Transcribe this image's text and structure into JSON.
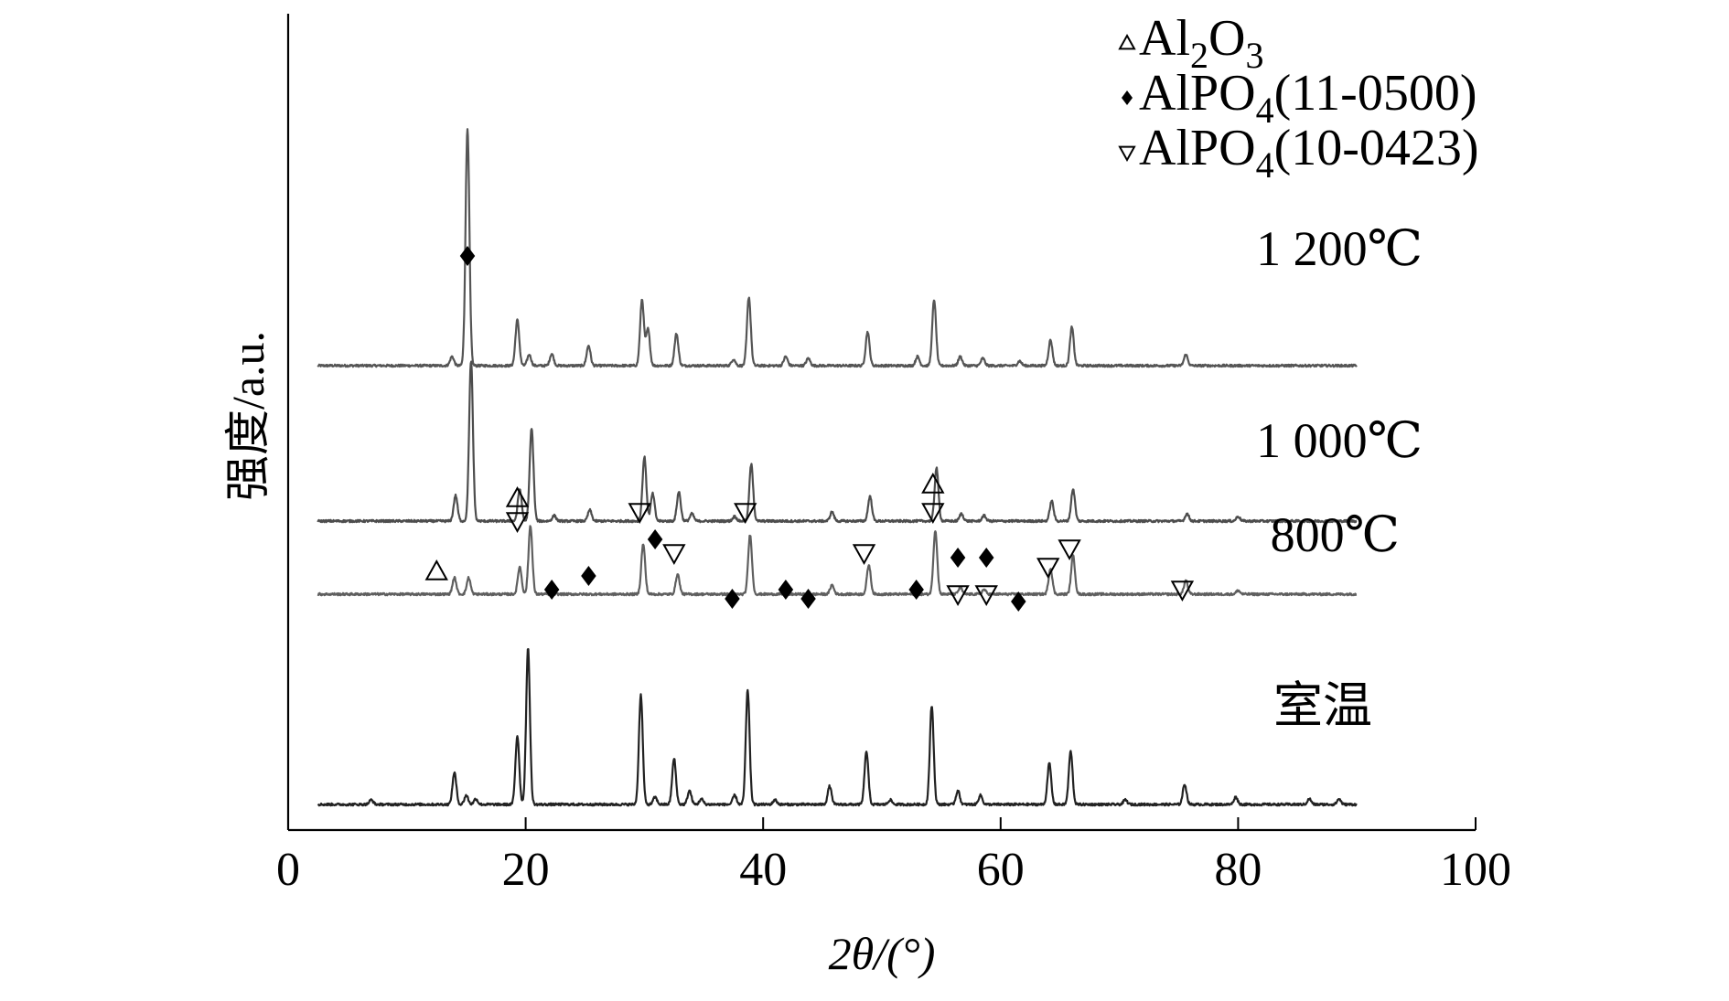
{
  "chart_data": {
    "type": "line",
    "title": "",
    "xlabel": "2θ/(°)",
    "ylabel": "强度/a.u.",
    "xlim": [
      0,
      100
    ],
    "x_ticks": [
      0,
      20,
      40,
      60,
      80,
      100
    ],
    "x_tick_labels": [
      "0",
      "20",
      "40",
      "60",
      "80",
      "100"
    ],
    "y_ticks_shown": false,
    "grid": false,
    "legend_position": "top-right",
    "legend": [
      {
        "marker": "triangle-up-open",
        "formula": "Al",
        "sub1": "2",
        "mid": "O",
        "sub2": "3",
        "suffix": ""
      },
      {
        "marker": "diamond-filled",
        "formula": "AlPO",
        "sub1": "4",
        "mid": "",
        "sub2": "",
        "suffix": "(11-0500)"
      },
      {
        "marker": "triangle-down-open",
        "formula": "AlPO",
        "sub1": "4",
        "mid": "",
        "sub2": "",
        "suffix": "(10-0423)"
      }
    ],
    "series": [
      {
        "name": "1 200℃",
        "color": "#555555",
        "baseline": 3.0,
        "peaks": [
          [
            13.8,
            0.1
          ],
          [
            15.1,
            2.6
          ],
          [
            19.3,
            0.5
          ],
          [
            20.3,
            0.12
          ],
          [
            22.2,
            0.13
          ],
          [
            25.3,
            0.22
          ],
          [
            29.8,
            0.72
          ],
          [
            30.3,
            0.4
          ],
          [
            32.7,
            0.35
          ],
          [
            37.5,
            0.07
          ],
          [
            38.8,
            0.75
          ],
          [
            41.9,
            0.1
          ],
          [
            43.8,
            0.08
          ],
          [
            48.8,
            0.37
          ],
          [
            53.0,
            0.1
          ],
          [
            54.4,
            0.72
          ],
          [
            56.6,
            0.1
          ],
          [
            58.5,
            0.08
          ],
          [
            61.6,
            0.05
          ],
          [
            64.2,
            0.28
          ],
          [
            66.0,
            0.42
          ],
          [
            75.6,
            0.12
          ]
        ]
      },
      {
        "name": "1 000℃",
        "color": "#4d4d4d",
        "baseline": 1.3,
        "peaks": [
          [
            14.1,
            0.28
          ],
          [
            15.4,
            1.75
          ],
          [
            19.5,
            0.35
          ],
          [
            20.5,
            1.02
          ],
          [
            22.4,
            0.06
          ],
          [
            25.4,
            0.12
          ],
          [
            30.0,
            0.7
          ],
          [
            30.7,
            0.3
          ],
          [
            32.9,
            0.32
          ],
          [
            34.0,
            0.08
          ],
          [
            37.6,
            0.05
          ],
          [
            39.0,
            0.62
          ],
          [
            45.8,
            0.1
          ],
          [
            49.0,
            0.27
          ],
          [
            54.6,
            0.58
          ],
          [
            56.7,
            0.08
          ],
          [
            58.6,
            0.06
          ],
          [
            64.3,
            0.22
          ],
          [
            66.1,
            0.35
          ],
          [
            75.7,
            0.08
          ],
          [
            80.0,
            0.05
          ]
        ]
      },
      {
        "name": "800℃",
        "color": "#5f5f5f",
        "baseline": 0.5,
        "peaks": [
          [
            14.0,
            0.18
          ],
          [
            15.2,
            0.18
          ],
          [
            19.5,
            0.3
          ],
          [
            20.4,
            0.75
          ],
          [
            29.9,
            0.55
          ],
          [
            32.8,
            0.22
          ],
          [
            38.9,
            0.65
          ],
          [
            45.8,
            0.1
          ],
          [
            48.9,
            0.32
          ],
          [
            54.5,
            0.7
          ],
          [
            56.6,
            0.07
          ],
          [
            58.6,
            0.05
          ],
          [
            64.2,
            0.28
          ],
          [
            66.1,
            0.42
          ],
          [
            75.6,
            0.15
          ],
          [
            80.0,
            0.04
          ]
        ]
      },
      {
        "name": "室温",
        "color": "#222222",
        "baseline": -1.8,
        "peaks": [
          [
            7.0,
            0.05
          ],
          [
            14.0,
            0.35
          ],
          [
            15.0,
            0.1
          ],
          [
            15.8,
            0.06
          ],
          [
            19.3,
            0.75
          ],
          [
            20.2,
            1.7
          ],
          [
            29.7,
            1.2
          ],
          [
            30.9,
            0.08
          ],
          [
            32.5,
            0.5
          ],
          [
            33.8,
            0.15
          ],
          [
            34.8,
            0.06
          ],
          [
            37.6,
            0.1
          ],
          [
            38.7,
            1.25
          ],
          [
            41.0,
            0.05
          ],
          [
            45.6,
            0.2
          ],
          [
            48.7,
            0.58
          ],
          [
            50.7,
            0.05
          ],
          [
            54.2,
            1.08
          ],
          [
            56.4,
            0.15
          ],
          [
            58.3,
            0.1
          ],
          [
            64.1,
            0.45
          ],
          [
            65.9,
            0.58
          ],
          [
            70.5,
            0.05
          ],
          [
            75.5,
            0.22
          ],
          [
            79.8,
            0.08
          ],
          [
            86.0,
            0.06
          ],
          [
            88.5,
            0.06
          ]
        ]
      }
    ],
    "annotations": [
      {
        "marker": "triangle-up-open",
        "x": 12.5,
        "level": 0.75
      },
      {
        "marker": "diamond-filled",
        "x": 15.1,
        "level": 4.2
      },
      {
        "marker": "triangle-up-open",
        "x": 19.3,
        "level": 1.55
      },
      {
        "marker": "triangle-down-open",
        "x": 19.3,
        "level": 1.3
      },
      {
        "marker": "diamond-filled",
        "x": 22.2,
        "level": 0.55
      },
      {
        "marker": "diamond-filled",
        "x": 25.3,
        "level": 0.7
      },
      {
        "marker": "triangle-down-open",
        "x": 29.6,
        "level": 1.4
      },
      {
        "marker": "diamond-filled",
        "x": 30.9,
        "level": 1.1
      },
      {
        "marker": "triangle-down-open",
        "x": 32.5,
        "level": 0.95
      },
      {
        "marker": "diamond-filled",
        "x": 37.4,
        "level": 0.45
      },
      {
        "marker": "triangle-down-open",
        "x": 38.5,
        "level": 1.4
      },
      {
        "marker": "diamond-filled",
        "x": 41.9,
        "level": 0.55
      },
      {
        "marker": "diamond-filled",
        "x": 43.8,
        "level": 0.45
      },
      {
        "marker": "triangle-down-open",
        "x": 48.5,
        "level": 0.95
      },
      {
        "marker": "diamond-filled",
        "x": 52.9,
        "level": 0.55
      },
      {
        "marker": "triangle-up-open",
        "x": 54.3,
        "level": 1.7
      },
      {
        "marker": "triangle-down-open",
        "x": 54.3,
        "level": 1.4
      },
      {
        "marker": "diamond-filled",
        "x": 56.4,
        "level": 0.9
      },
      {
        "marker": "triangle-down-open",
        "x": 56.4,
        "level": 0.5
      },
      {
        "marker": "diamond-filled",
        "x": 58.8,
        "level": 0.9
      },
      {
        "marker": "triangle-down-open",
        "x": 58.8,
        "level": 0.5
      },
      {
        "marker": "diamond-filled",
        "x": 61.5,
        "level": 0.42
      },
      {
        "marker": "triangle-down-open",
        "x": 64.0,
        "level": 0.8
      },
      {
        "marker": "triangle-down-open",
        "x": 65.8,
        "level": 1.0
      },
      {
        "marker": "triangle-down-open",
        "x": 75.3,
        "level": 0.55
      }
    ]
  }
}
